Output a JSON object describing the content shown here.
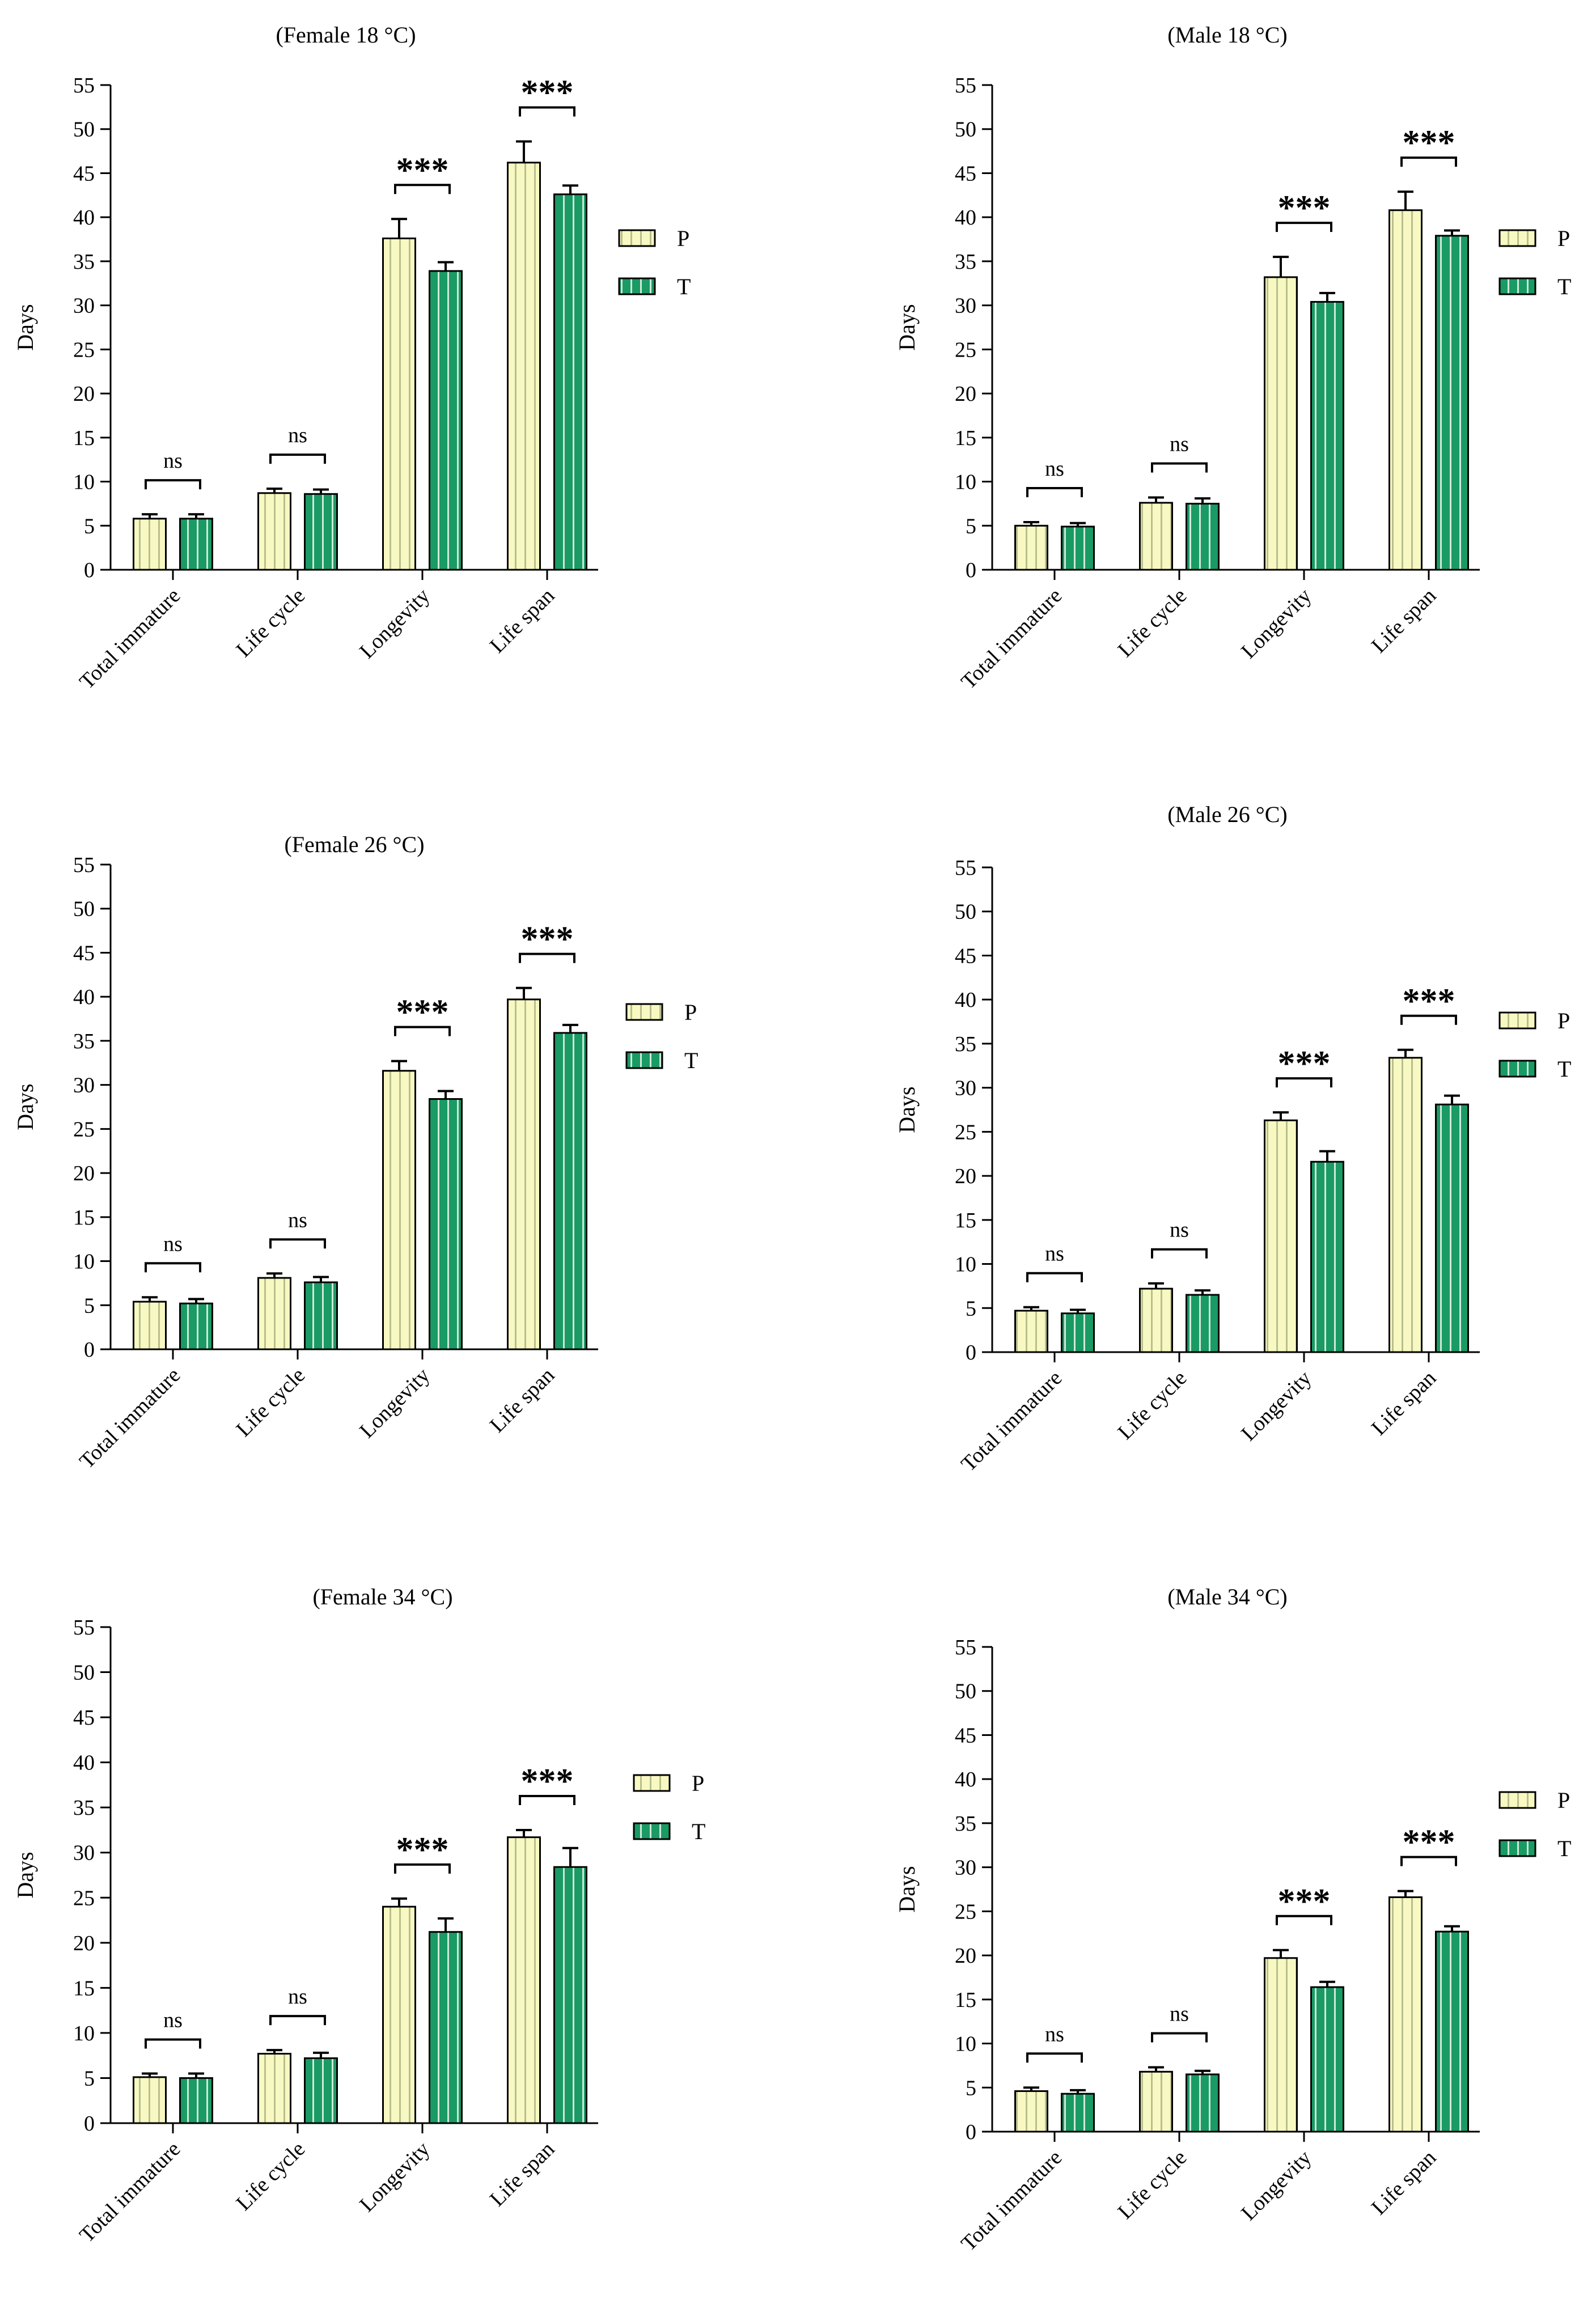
{
  "colors": {
    "P_fill": "#f8f9c2",
    "P_stripe": "#b9be8e",
    "T_fill": "#1a9a64",
    "T_stripe": "#cfe9d9",
    "ink": "#000000"
  },
  "chart_data": [
    {
      "type": "bar",
      "title": "(Female 18 °C)",
      "ylabel": "Days",
      "xlabel": "",
      "ylim": [
        0,
        55
      ],
      "yticks": [
        "0",
        "5",
        "10",
        "15",
        "20",
        "25",
        "30",
        "35",
        "40",
        "45",
        "50",
        "55"
      ],
      "categories": [
        "Total immature",
        "Life cycle",
        "Longevity",
        "Life span"
      ],
      "series": [
        {
          "name": "P",
          "values": [
            5.8,
            8.7,
            37.6,
            46.2
          ],
          "errors": [
            0.5,
            0.5,
            2.2,
            2.4
          ]
        },
        {
          "name": "T",
          "values": [
            5.8,
            8.6,
            33.9,
            42.6
          ],
          "errors": [
            0.5,
            0.5,
            1.0,
            1.0
          ]
        }
      ],
      "significance": [
        "ns",
        "ns",
        "***",
        "***"
      ],
      "legend": [
        "P",
        "T"
      ],
      "legend_position": "right"
    },
    {
      "type": "bar",
      "title": "(Male 18 °C)",
      "ylabel": "Days",
      "xlabel": "",
      "ylim": [
        0,
        55
      ],
      "yticks": [
        "0",
        "5",
        "10",
        "15",
        "20",
        "25",
        "30",
        "35",
        "40",
        "45",
        "50",
        "55"
      ],
      "categories": [
        "Total immature",
        "Life cycle",
        "Longevity",
        "Life span"
      ],
      "series": [
        {
          "name": "P",
          "values": [
            5.0,
            7.6,
            33.2,
            40.8
          ],
          "errors": [
            0.4,
            0.6,
            2.3,
            2.1
          ]
        },
        {
          "name": "T",
          "values": [
            4.9,
            7.5,
            30.4,
            37.9
          ],
          "errors": [
            0.4,
            0.6,
            1.0,
            0.6
          ]
        }
      ],
      "significance": [
        "ns",
        "ns",
        "***",
        "***"
      ],
      "legend": [
        "P",
        "T"
      ],
      "legend_position": "right"
    },
    {
      "type": "bar",
      "title": "(Female 26 °C)",
      "ylabel": "Days",
      "xlabel": "",
      "ylim": [
        0,
        55
      ],
      "yticks": [
        "0",
        "5",
        "10",
        "15",
        "20",
        "25",
        "30",
        "35",
        "40",
        "45",
        "50",
        "55"
      ],
      "categories": [
        "Total immature",
        "Life cycle",
        "Longevity",
        "Life span"
      ],
      "series": [
        {
          "name": "P",
          "values": [
            5.4,
            8.1,
            31.6,
            39.7
          ],
          "errors": [
            0.5,
            0.5,
            1.1,
            1.3
          ]
        },
        {
          "name": "T",
          "values": [
            5.2,
            7.6,
            28.4,
            35.9
          ],
          "errors": [
            0.5,
            0.6,
            0.9,
            0.9
          ]
        }
      ],
      "significance": [
        "ns",
        "ns",
        "***",
        "***"
      ],
      "legend": [
        "P",
        "T"
      ],
      "legend_position": "right"
    },
    {
      "type": "bar",
      "title": "(Male 26 °C)",
      "ylabel": "Days",
      "xlabel": "",
      "ylim": [
        0,
        55
      ],
      "yticks": [
        "0",
        "5",
        "10",
        "15",
        "20",
        "25",
        "30",
        "35",
        "40",
        "45",
        "50",
        "55"
      ],
      "categories": [
        "Total immature",
        "Life cycle",
        "Longevity",
        "Life span"
      ],
      "series": [
        {
          "name": "P",
          "values": [
            4.7,
            7.2,
            26.3,
            33.4
          ],
          "errors": [
            0.4,
            0.6,
            0.9,
            0.9
          ]
        },
        {
          "name": "T",
          "values": [
            4.4,
            6.5,
            21.6,
            28.1
          ],
          "errors": [
            0.4,
            0.5,
            1.2,
            1.0
          ]
        }
      ],
      "significance": [
        "ns",
        "ns",
        "***",
        "***"
      ],
      "legend": [
        "P",
        "T"
      ],
      "legend_position": "right"
    },
    {
      "type": "bar",
      "title": "(Female 34 °C)",
      "ylabel": "Days",
      "xlabel": "",
      "ylim": [
        0,
        55
      ],
      "yticks": [
        "0",
        "5",
        "10",
        "15",
        "20",
        "25",
        "30",
        "35",
        "40",
        "45",
        "50",
        "55"
      ],
      "categories": [
        "Total immature",
        "Life cycle",
        "Longevity",
        "Life span"
      ],
      "series": [
        {
          "name": "P",
          "values": [
            5.1,
            7.7,
            24.0,
            31.7
          ],
          "errors": [
            0.4,
            0.4,
            0.9,
            0.8
          ]
        },
        {
          "name": "T",
          "values": [
            5.0,
            7.2,
            21.2,
            28.4
          ],
          "errors": [
            0.5,
            0.6,
            1.5,
            2.1
          ]
        }
      ],
      "significance": [
        "ns",
        "ns",
        "***",
        "***"
      ],
      "legend": [
        "P",
        "T"
      ],
      "legend_position": "right"
    },
    {
      "type": "bar",
      "title": "(Male 34 °C)",
      "ylabel": "Days",
      "xlabel": "",
      "ylim": [
        0,
        55
      ],
      "yticks": [
        "0",
        "5",
        "10",
        "15",
        "20",
        "25",
        "30",
        "35",
        "40",
        "45",
        "50",
        "55"
      ],
      "categories": [
        "Total immature",
        "Life cycle",
        "Longevity",
        "Life span"
      ],
      "series": [
        {
          "name": "P",
          "values": [
            4.6,
            6.8,
            19.7,
            26.6
          ],
          "errors": [
            0.4,
            0.5,
            0.9,
            0.7
          ]
        },
        {
          "name": "T",
          "values": [
            4.3,
            6.5,
            16.4,
            22.7
          ],
          "errors": [
            0.4,
            0.4,
            0.6,
            0.6
          ]
        }
      ],
      "significance": [
        "ns",
        "ns",
        "***",
        "***"
      ],
      "legend": [
        "P",
        "T"
      ],
      "legend_position": "right"
    }
  ]
}
